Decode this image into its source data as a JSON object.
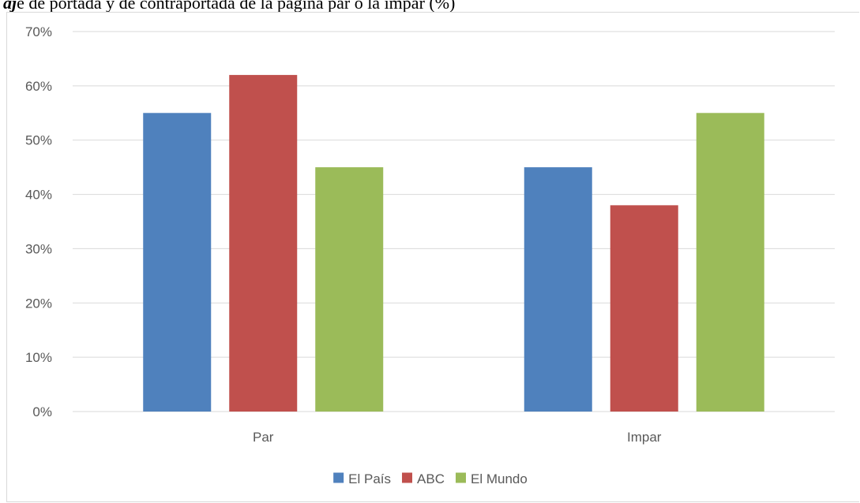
{
  "document": {
    "text_lead": "aj",
    "text_rest": "e de portada y de contraportada de la página par o la impar (%)"
  },
  "chart_data": {
    "type": "bar",
    "title": "",
    "xlabel": "",
    "ylabel": "",
    "categories": [
      "Par",
      "Impar"
    ],
    "series": [
      {
        "name": "El País",
        "values": [
          55,
          45
        ],
        "color": "#4f81bd"
      },
      {
        "name": "ABC",
        "values": [
          62,
          38
        ],
        "color": "#c0504d"
      },
      {
        "name": "El Mundo",
        "values": [
          45,
          55
        ],
        "color": "#9bbb59"
      }
    ],
    "ylim": [
      0,
      70
    ],
    "yticks": [
      "0%",
      "10%",
      "20%",
      "30%",
      "40%",
      "50%",
      "60%",
      "70%"
    ],
    "grid": true,
    "legend": "bottom",
    "gridline_color": "#d9d9d9"
  }
}
